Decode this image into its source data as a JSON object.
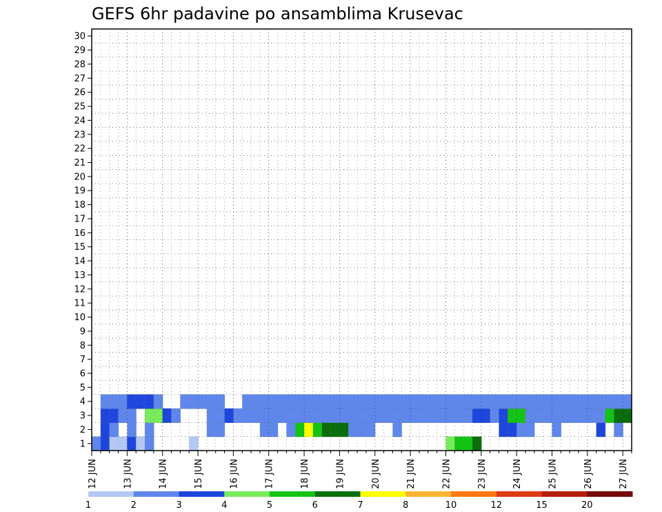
{
  "chart_data": {
    "type": "heatmap",
    "title": "GEFS 6hr padavine po ansamblima Krusevac",
    "xlabel": "",
    "ylabel": "",
    "x_ticks": [
      "12 JUN",
      "13 JUN",
      "14 JUN",
      "15 JUN",
      "16 JUN",
      "17 JUN",
      "18 JUN",
      "19 JUN",
      "20 JUN",
      "21 JUN",
      "22 JUN",
      "23 JUN",
      "24 JUN",
      "25 JUN",
      "26 JUN",
      "27 JUN"
    ],
    "y_ticks": [
      "1",
      "2",
      "3",
      "4",
      "5",
      "6",
      "7",
      "8",
      "9",
      "10",
      "11",
      "12",
      "13",
      "14",
      "15",
      "16",
      "17",
      "18",
      "19",
      "20",
      "21",
      "22",
      "23",
      "24",
      "25",
      "26",
      "27",
      "28",
      "29",
      "30"
    ],
    "x_steps_per_day": 4,
    "x_step_count": 61,
    "y_range": [
      1,
      30
    ],
    "grid": "dotted",
    "legend_position": "bottom",
    "legend_labels": [
      "1",
      "2",
      "3",
      "4",
      "5",
      "6",
      "7",
      "8",
      "10",
      "12",
      "15",
      "20"
    ],
    "bins": [
      {
        "color": "#b4c8f5"
      },
      {
        "color": "#5f87eb"
      },
      {
        "color": "#1e46dc"
      },
      {
        "color": "#78eb5a"
      },
      {
        "color": "#14c314"
      },
      {
        "color": "#0a6e0a"
      },
      {
        "color": "#ffff00"
      },
      {
        "color": "#ffb432"
      },
      {
        "color": "#ff7814"
      },
      {
        "color": "#dc3c14"
      },
      {
        "color": "#b41e0a"
      },
      {
        "color": "#780a0a"
      }
    ],
    "rows": [
      {
        "member": 1,
        "cells": [
          [
            0,
            1
          ],
          [
            1,
            2
          ],
          [
            2,
            0
          ],
          [
            3,
            0
          ],
          [
            4,
            2
          ],
          [
            5,
            0
          ],
          [
            6,
            1
          ],
          [
            11,
            0
          ],
          [
            40,
            3
          ],
          [
            41,
            4
          ],
          [
            42,
            4
          ],
          [
            43,
            5
          ]
        ]
      },
      {
        "member": 2,
        "cells": [
          [
            1,
            2
          ],
          [
            2,
            1
          ],
          [
            4,
            1
          ],
          [
            6,
            1
          ],
          [
            13,
            1
          ],
          [
            14,
            1
          ],
          [
            19,
            1
          ],
          [
            20,
            1
          ],
          [
            22,
            1
          ],
          [
            23,
            4
          ],
          [
            24,
            6
          ],
          [
            25,
            4
          ],
          [
            26,
            5
          ],
          [
            27,
            5
          ],
          [
            28,
            5
          ],
          [
            29,
            1
          ],
          [
            30,
            1
          ],
          [
            31,
            1
          ],
          [
            34,
            1
          ],
          [
            46,
            2
          ],
          [
            47,
            2
          ],
          [
            48,
            1
          ],
          [
            49,
            1
          ],
          [
            52,
            1
          ],
          [
            57,
            2
          ],
          [
            59,
            1
          ]
        ]
      },
      {
        "member": 3,
        "cells": [
          [
            1,
            2
          ],
          [
            2,
            2
          ],
          [
            3,
            1
          ],
          [
            4,
            1
          ],
          [
            6,
            3
          ],
          [
            7,
            3
          ],
          [
            8,
            2
          ],
          [
            9,
            1
          ],
          [
            13,
            1
          ],
          [
            14,
            1
          ],
          [
            15,
            2
          ],
          [
            16,
            1
          ],
          [
            17,
            1
          ],
          [
            18,
            1
          ],
          [
            19,
            1
          ],
          [
            20,
            1
          ],
          [
            21,
            1
          ],
          [
            22,
            1
          ],
          [
            23,
            1
          ],
          [
            24,
            1
          ],
          [
            25,
            1
          ],
          [
            26,
            1
          ],
          [
            27,
            1
          ],
          [
            28,
            1
          ],
          [
            29,
            1
          ],
          [
            30,
            1
          ],
          [
            31,
            1
          ],
          [
            32,
            1
          ],
          [
            33,
            1
          ],
          [
            34,
            1
          ],
          [
            35,
            1
          ],
          [
            36,
            1
          ],
          [
            37,
            1
          ],
          [
            38,
            1
          ],
          [
            39,
            1
          ],
          [
            40,
            1
          ],
          [
            41,
            1
          ],
          [
            42,
            1
          ],
          [
            43,
            2
          ],
          [
            44,
            2
          ],
          [
            45,
            1
          ],
          [
            46,
            2
          ],
          [
            47,
            4
          ],
          [
            48,
            4
          ],
          [
            49,
            1
          ],
          [
            50,
            1
          ],
          [
            51,
            1
          ],
          [
            52,
            1
          ],
          [
            53,
            1
          ],
          [
            54,
            1
          ],
          [
            55,
            1
          ],
          [
            56,
            1
          ],
          [
            57,
            1
          ],
          [
            58,
            4
          ],
          [
            59,
            5
          ],
          [
            60,
            5
          ]
        ]
      },
      {
        "member": 4,
        "cells": [
          [
            1,
            1
          ],
          [
            2,
            1
          ],
          [
            3,
            1
          ],
          [
            4,
            2
          ],
          [
            5,
            2
          ],
          [
            6,
            2
          ],
          [
            7,
            1
          ],
          [
            10,
            1
          ],
          [
            11,
            1
          ],
          [
            12,
            1
          ],
          [
            13,
            1
          ],
          [
            14,
            1
          ],
          [
            17,
            1
          ],
          [
            18,
            1
          ],
          [
            19,
            1
          ],
          [
            20,
            1
          ],
          [
            21,
            1
          ],
          [
            22,
            1
          ],
          [
            23,
            1
          ],
          [
            24,
            1
          ],
          [
            25,
            1
          ],
          [
            26,
            1
          ],
          [
            27,
            1
          ],
          [
            28,
            1
          ],
          [
            29,
            1
          ],
          [
            30,
            1
          ],
          [
            31,
            1
          ],
          [
            32,
            1
          ],
          [
            33,
            1
          ],
          [
            34,
            1
          ],
          [
            35,
            1
          ],
          [
            36,
            1
          ],
          [
            37,
            1
          ],
          [
            38,
            1
          ],
          [
            39,
            1
          ],
          [
            40,
            1
          ],
          [
            41,
            1
          ],
          [
            42,
            1
          ],
          [
            43,
            1
          ],
          [
            44,
            1
          ],
          [
            45,
            1
          ],
          [
            46,
            1
          ],
          [
            47,
            1
          ],
          [
            48,
            1
          ],
          [
            49,
            1
          ],
          [
            50,
            1
          ],
          [
            51,
            1
          ],
          [
            52,
            1
          ],
          [
            53,
            1
          ],
          [
            54,
            1
          ],
          [
            55,
            1
          ],
          [
            56,
            1
          ],
          [
            57,
            1
          ],
          [
            58,
            1
          ],
          [
            59,
            1
          ],
          [
            60,
            1
          ]
        ]
      }
    ]
  }
}
